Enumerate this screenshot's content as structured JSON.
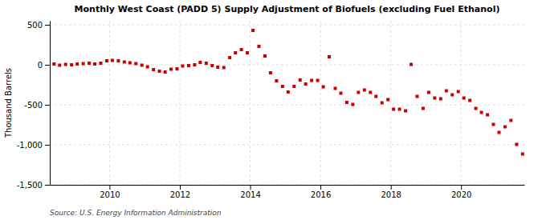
{
  "chart_data": {
    "type": "scatter",
    "title": "Monthly West Coast (PADD 5) Supply Adjustment of Biofuels (excluding Fuel Ethanol)",
    "ylabel": "Thousand Barrels",
    "source": "Source: U.S. Energy Information Administration",
    "color": "#cc0000",
    "marker": "square",
    "grid": true,
    "xlim": [
      2008.3,
      2021.8
    ],
    "ylim": [
      -1500,
      550
    ],
    "xticks": [
      2010,
      2012,
      2014,
      2016,
      2018,
      2020
    ],
    "yticks": [
      {
        "value": -1500,
        "label": "-1,500"
      },
      {
        "value": -1000,
        "label": "-1,000"
      },
      -500,
      0,
      500
    ],
    "x": [
      2008.42,
      2008.58,
      2008.75,
      2008.92,
      2009.08,
      2009.25,
      2009.42,
      2009.58,
      2009.75,
      2009.92,
      2010.08,
      2010.25,
      2010.42,
      2010.58,
      2010.75,
      2010.92,
      2011.08,
      2011.25,
      2011.42,
      2011.58,
      2011.75,
      2011.92,
      2012.08,
      2012.25,
      2012.42,
      2012.58,
      2012.75,
      2012.92,
      2013.08,
      2013.25,
      2013.42,
      2013.58,
      2013.75,
      2013.92,
      2014.08,
      2014.25,
      2014.42,
      2014.58,
      2014.75,
      2014.92,
      2015.08,
      2015.25,
      2015.42,
      2015.58,
      2015.75,
      2015.92,
      2016.08,
      2016.25,
      2016.42,
      2016.58,
      2016.75,
      2016.92,
      2017.08,
      2017.25,
      2017.42,
      2017.58,
      2017.75,
      2017.92,
      2018.08,
      2018.25,
      2018.42,
      2018.58,
      2018.75,
      2018.92,
      2019.08,
      2019.25,
      2019.42,
      2019.58,
      2019.75,
      2019.92,
      2020.08,
      2020.25,
      2020.42,
      2020.58,
      2020.75,
      2020.92,
      2021.08,
      2021.25,
      2021.42,
      2021.58,
      2021.75
    ],
    "values": [
      10,
      -5,
      5,
      0,
      10,
      15,
      20,
      10,
      20,
      50,
      55,
      50,
      35,
      25,
      15,
      -5,
      -25,
      -60,
      -80,
      -90,
      -55,
      -50,
      -15,
      -10,
      0,
      30,
      20,
      -10,
      -30,
      -35,
      90,
      150,
      190,
      150,
      430,
      230,
      110,
      -100,
      -200,
      -270,
      -340,
      -270,
      -190,
      -240,
      -195,
      -195,
      -275,
      100,
      -295,
      -355,
      -470,
      -495,
      -345,
      -315,
      -345,
      -395,
      -475,
      -435,
      -555,
      -555,
      -575,
      5,
      -395,
      -545,
      -345,
      -415,
      -425,
      -325,
      -375,
      -335,
      -415,
      -445,
      -545,
      -595,
      -625,
      -745,
      -845,
      -775,
      -695,
      -995,
      -1115
    ]
  }
}
